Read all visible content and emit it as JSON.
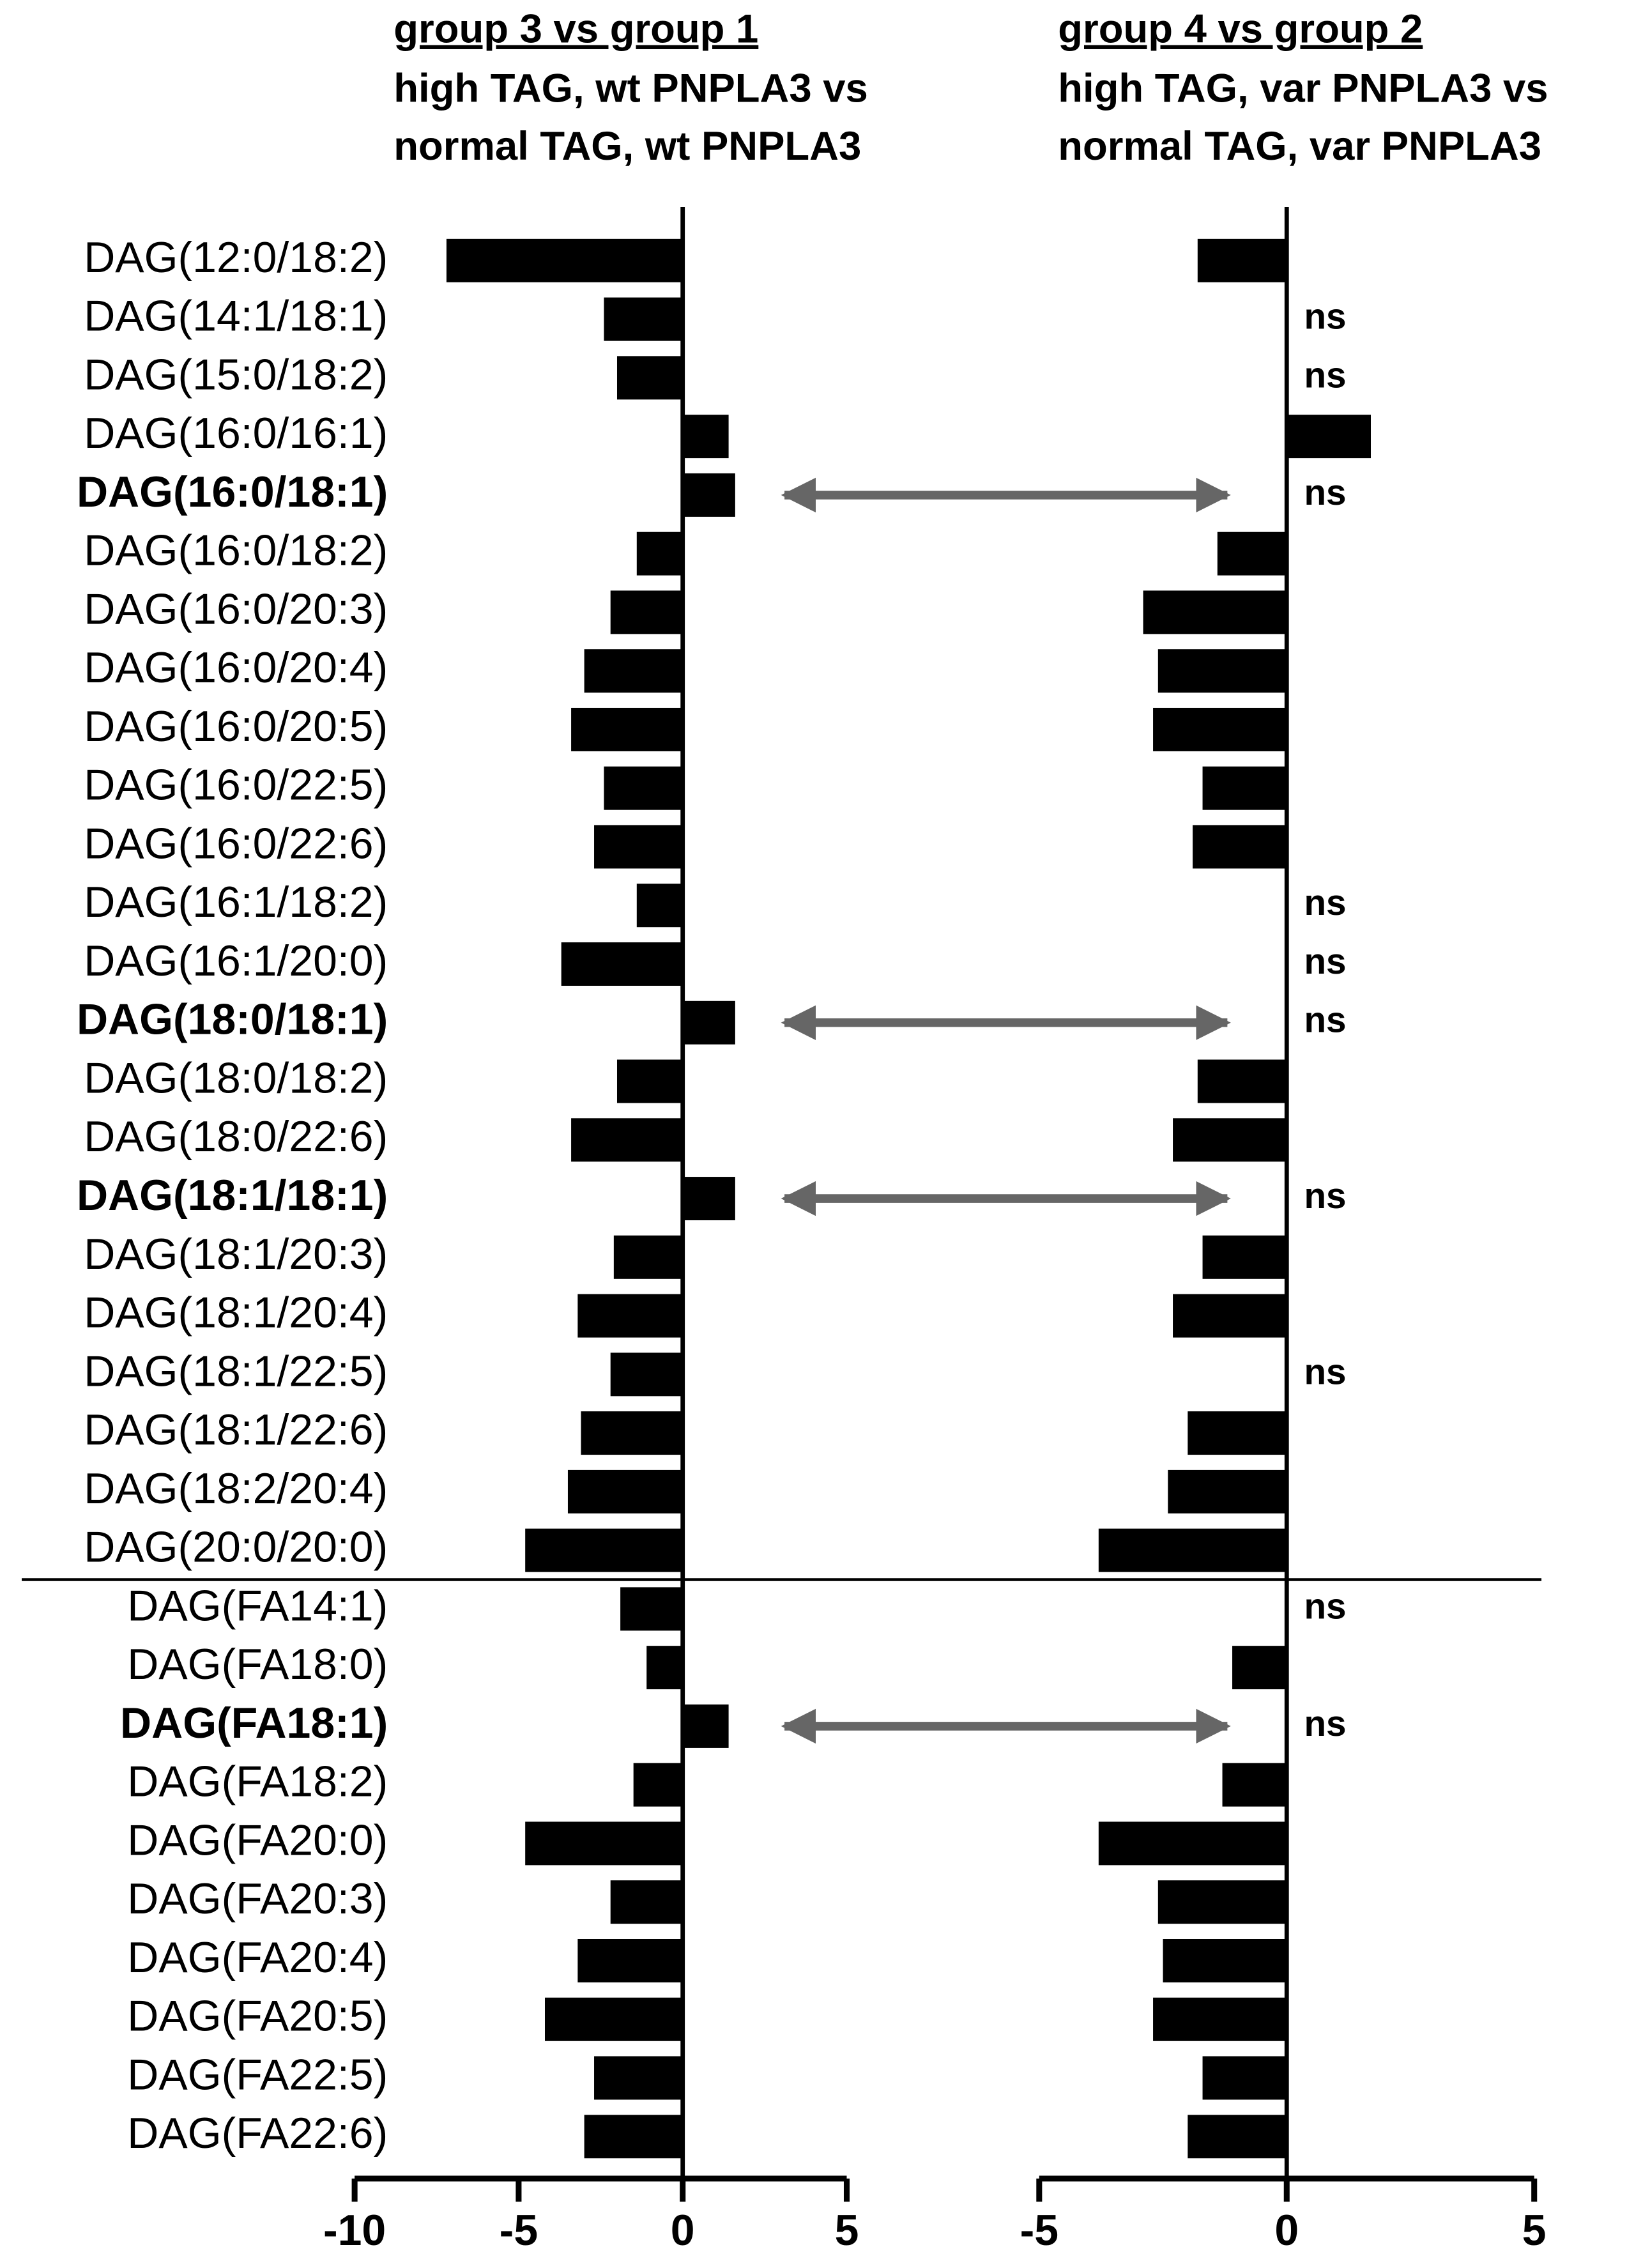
{
  "chart_data": {
    "type": "bar",
    "orientation": "horizontal",
    "color": "#000000",
    "categories": [
      "DAG(12:0/18:2)",
      "DAG(14:1/18:1)",
      "DAG(15:0/18:2)",
      "DAG(16:0/16:1)",
      "DAG(16:0/18:1)",
      "DAG(16:0/18:2)",
      "DAG(16:0/20:3)",
      "DAG(16:0/20:4)",
      "DAG(16:0/20:5)",
      "DAG(16:0/22:5)",
      "DAG(16:0/22:6)",
      "DAG(16:1/18:2)",
      "DAG(16:1/20:0)",
      "DAG(18:0/18:1)",
      "DAG(18:0/18:2)",
      "DAG(18:0/22:6)",
      "DAG(18:1/18:1)",
      "DAG(18:1/20:3)",
      "DAG(18:1/20:4)",
      "DAG(18:1/22:5)",
      "DAG(18:1/22:6)",
      "DAG(18:2/20:4)",
      "DAG(20:0/20:0)",
      "DAG(FA14:1)",
      "DAG(FA18:0)",
      "DAG(FA18:1)",
      "DAG(FA18:2)",
      "DAG(FA20:0)",
      "DAG(FA20:3)",
      "DAG(FA20:4)",
      "DAG(FA20:5)",
      "DAG(FA22:5)",
      "DAG(FA22:6)"
    ],
    "bold_categories": [
      4,
      13,
      16,
      25
    ],
    "separator_after": 22,
    "panels": [
      {
        "title": "group 3 vs group 1",
        "subtitle": [
          "high TAG, wt PNPLA3 vs",
          "normal TAG, wt PNPLA3"
        ],
        "xlim": [
          -10,
          5
        ],
        "xticks": [
          -10,
          -5,
          0,
          5
        ],
        "values": [
          -7.2,
          -2.4,
          -2.0,
          1.4,
          1.6,
          -1.4,
          -2.2,
          -3.0,
          -3.4,
          -2.4,
          -2.7,
          -1.4,
          -3.7,
          1.6,
          -2.0,
          -3.4,
          1.6,
          -2.1,
          -3.2,
          -2.2,
          -3.1,
          -3.5,
          -4.8,
          -1.9,
          -1.1,
          1.4,
          -1.5,
          -4.8,
          -2.2,
          -3.2,
          -4.2,
          -2.7,
          -3.0
        ]
      },
      {
        "title": "group 4 vs group 2",
        "subtitle": [
          "high TAG, var PNPLA3 vs",
          "normal TAG, var PNPLA3"
        ],
        "xlim": [
          -5,
          5
        ],
        "xticks": [
          -5,
          0,
          5
        ],
        "values": [
          -1.8,
          null,
          null,
          1.7,
          null,
          -1.4,
          -2.9,
          -2.6,
          -2.7,
          -1.7,
          -1.9,
          null,
          null,
          null,
          -1.8,
          -2.3,
          null,
          -1.7,
          -2.3,
          null,
          -2.0,
          -2.4,
          -3.8,
          null,
          -1.1,
          null,
          -1.3,
          -3.8,
          -2.6,
          -2.5,
          -2.7,
          -1.7,
          -2.0
        ],
        "value_labels": [
          null,
          "ns",
          "ns",
          null,
          "ns",
          null,
          null,
          null,
          null,
          null,
          null,
          "ns",
          "ns",
          "ns",
          null,
          null,
          "ns",
          null,
          null,
          "ns",
          null,
          null,
          null,
          "ns",
          null,
          "ns",
          null,
          null,
          null,
          null,
          null,
          null,
          null
        ]
      }
    ]
  }
}
